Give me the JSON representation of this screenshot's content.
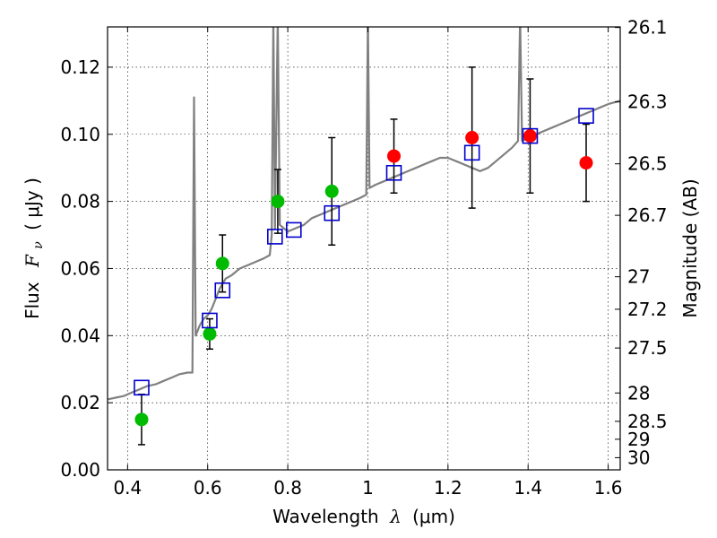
{
  "chart_data": {
    "type": "scatter",
    "title": "",
    "xlabel_prefix": "Wavelength",
    "xlabel_symbol": "λ",
    "xlabel_unit": "(μm)",
    "ylabel_prefix": "Flux",
    "ylabel_symbol": "F",
    "ylabel_sub": "ν",
    "ylabel_unit": "( μJy )",
    "y2label": "Magnitude (AB)",
    "xlim": [
      0.35,
      1.63
    ],
    "ylim": [
      0.0,
      0.132
    ],
    "grid": true,
    "x_ticks": [
      0.4,
      0.6,
      0.8,
      1.0,
      1.2,
      1.4,
      1.6
    ],
    "x_tick_labels": [
      "0.4",
      "0.6",
      "0.8",
      "1",
      "1.2",
      "1.4",
      "1.6"
    ],
    "y_ticks": [
      0.0,
      0.02,
      0.04,
      0.06,
      0.08,
      0.1,
      0.12
    ],
    "y_tick_labels": [
      "0.00",
      "0.02",
      "0.04",
      "0.06",
      "0.08",
      "0.10",
      "0.12"
    ],
    "y2_ticks": [
      "26.1",
      "26.3",
      "26.5",
      "26.7",
      "27",
      "27.2",
      "27.5",
      "28",
      "28.5",
      "29",
      "30"
    ],
    "colors": {
      "model": "#808080",
      "green": "#00bb00",
      "red": "#ff0000",
      "square": "#0000cc",
      "errorbar": "#000000"
    },
    "model_spectrum": [
      [
        0.35,
        0.021
      ],
      [
        0.37,
        0.0215
      ],
      [
        0.39,
        0.022
      ],
      [
        0.41,
        0.023
      ],
      [
        0.43,
        0.024
      ],
      [
        0.45,
        0.025
      ],
      [
        0.47,
        0.0255
      ],
      [
        0.49,
        0.0265
      ],
      [
        0.51,
        0.0275
      ],
      [
        0.53,
        0.0285
      ],
      [
        0.55,
        0.029
      ],
      [
        0.562,
        0.029
      ],
      [
        0.566,
        0.111
      ],
      [
        0.57,
        0.04
      ],
      [
        0.58,
        0.043
      ],
      [
        0.59,
        0.045
      ],
      [
        0.6,
        0.046
      ],
      [
        0.61,
        0.048
      ],
      [
        0.62,
        0.051
      ],
      [
        0.63,
        0.054
      ],
      [
        0.645,
        0.057
      ],
      [
        0.66,
        0.058
      ],
      [
        0.68,
        0.06
      ],
      [
        0.7,
        0.061
      ],
      [
        0.72,
        0.062
      ],
      [
        0.74,
        0.063
      ],
      [
        0.755,
        0.064
      ],
      [
        0.76,
        0.07
      ],
      [
        0.764,
        0.135
      ],
      [
        0.768,
        0.072
      ],
      [
        0.775,
        0.135
      ],
      [
        0.78,
        0.073
      ],
      [
        0.8,
        0.071
      ],
      [
        0.82,
        0.072
      ],
      [
        0.84,
        0.073
      ],
      [
        0.86,
        0.075
      ],
      [
        0.88,
        0.076
      ],
      [
        0.9,
        0.077
      ],
      [
        0.92,
        0.078
      ],
      [
        0.94,
        0.079
      ],
      [
        0.96,
        0.08
      ],
      [
        0.98,
        0.081
      ],
      [
        0.996,
        0.082
      ],
      [
        1.0,
        0.135
      ],
      [
        1.004,
        0.084
      ],
      [
        1.02,
        0.085
      ],
      [
        1.04,
        0.086
      ],
      [
        1.06,
        0.087
      ],
      [
        1.08,
        0.088
      ],
      [
        1.1,
        0.089
      ],
      [
        1.12,
        0.09
      ],
      [
        1.14,
        0.091
      ],
      [
        1.16,
        0.092
      ],
      [
        1.18,
        0.093
      ],
      [
        1.2,
        0.093
      ],
      [
        1.22,
        0.092
      ],
      [
        1.24,
        0.091
      ],
      [
        1.26,
        0.09
      ],
      [
        1.28,
        0.089
      ],
      [
        1.3,
        0.09
      ],
      [
        1.32,
        0.092
      ],
      [
        1.34,
        0.094
      ],
      [
        1.36,
        0.096
      ],
      [
        1.375,
        0.098
      ],
      [
        1.38,
        0.135
      ],
      [
        1.385,
        0.098
      ],
      [
        1.4,
        0.099
      ],
      [
        1.42,
        0.1
      ],
      [
        1.44,
        0.101
      ],
      [
        1.46,
        0.102
      ],
      [
        1.48,
        0.103
      ],
      [
        1.5,
        0.104
      ],
      [
        1.52,
        0.105
      ],
      [
        1.54,
        0.106
      ],
      [
        1.56,
        0.107
      ],
      [
        1.58,
        0.108
      ],
      [
        1.6,
        0.109
      ],
      [
        1.63,
        0.11
      ]
    ],
    "series": [
      {
        "marker": "circle",
        "color": "green",
        "points": [
          {
            "x": 0.435,
            "y": 0.015,
            "err": 0.0075
          },
          {
            "x": 0.605,
            "y": 0.0405,
            "err": 0.0045
          },
          {
            "x": 0.637,
            "y": 0.0615,
            "err": 0.0085
          },
          {
            "x": 0.775,
            "y": 0.08,
            "err": 0.0095
          },
          {
            "x": 0.91,
            "y": 0.083,
            "err": 0.016
          }
        ]
      },
      {
        "marker": "circle",
        "color": "red",
        "points": [
          {
            "x": 1.065,
            "y": 0.0935,
            "err": 0.011
          },
          {
            "x": 1.26,
            "y": 0.099,
            "err": 0.021
          },
          {
            "x": 1.405,
            "y": 0.0995,
            "err": 0.017
          },
          {
            "x": 1.545,
            "y": 0.0915,
            "err": 0.0115
          }
        ]
      },
      {
        "marker": "square",
        "color": "square",
        "points": [
          {
            "x": 0.435,
            "y": 0.0245
          },
          {
            "x": 0.605,
            "y": 0.0445
          },
          {
            "x": 0.637,
            "y": 0.0535
          },
          {
            "x": 0.768,
            "y": 0.0695
          },
          {
            "x": 0.815,
            "y": 0.0715
          },
          {
            "x": 0.91,
            "y": 0.0765
          },
          {
            "x": 1.065,
            "y": 0.0885
          },
          {
            "x": 1.26,
            "y": 0.0945
          },
          {
            "x": 1.405,
            "y": 0.0995
          },
          {
            "x": 1.545,
            "y": 0.1055
          }
        ]
      }
    ]
  }
}
